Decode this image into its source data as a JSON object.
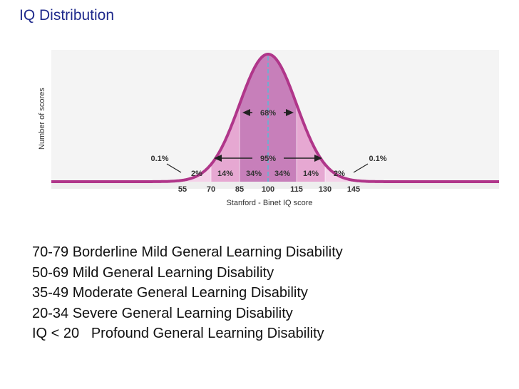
{
  "slide": {
    "title": "IQ Distribution",
    "items": [
      "70-79 Borderline Mild General Learning Disability",
      "50-69 Mild General Learning Disability",
      "35-49 Moderate General Learning Disability",
      "20-34 Severe General Learning Disability",
      "IQ < 20   Profound General Learning Disability"
    ]
  },
  "chart_data": {
    "type": "area",
    "distribution": "normal",
    "mean": 100,
    "sd": 15,
    "xlabel": "Stanford - Binet IQ score",
    "ylabel": "Number of scores",
    "xticks": [
      55,
      70,
      85,
      100,
      115,
      130,
      145
    ],
    "xlim": [
      40,
      160
    ],
    "band_labels": [
      {
        "label": "0.1%",
        "from": 40,
        "to": 55
      },
      {
        "label": "2%",
        "from": 55,
        "to": 70
      },
      {
        "label": "14%",
        "from": 70,
        "to": 85
      },
      {
        "label": "34%",
        "from": 85,
        "to": 100
      },
      {
        "label": "34%",
        "from": 100,
        "to": 115
      },
      {
        "label": "14%",
        "from": 115,
        "to": 130
      },
      {
        "label": "2%",
        "from": 130,
        "to": 145
      },
      {
        "label": "0.1%",
        "from": 145,
        "to": 160
      }
    ],
    "ranges": [
      {
        "label": "68%",
        "from": 85,
        "to": 115
      },
      {
        "label": "95%",
        "from": 70,
        "to": 130
      }
    ],
    "colors": {
      "curve": "#b0368a",
      "band_inner": "#c77fba",
      "band_middle": "#e6a8d2",
      "band_outer": "#f4d2e9",
      "mean_line": "#5ab8d6"
    },
    "grid": false
  }
}
